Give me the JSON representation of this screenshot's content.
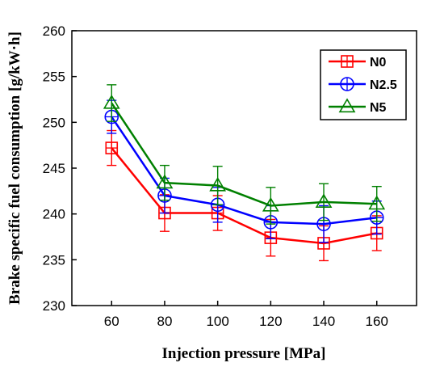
{
  "chart_data": {
    "type": "line",
    "xlabel": "Injection pressure [MPa]",
    "ylabel": "Brake specific fuel consumption [g/kW·h]",
    "x": [
      60,
      80,
      100,
      120,
      140,
      160
    ],
    "xlim": [
      45,
      175
    ],
    "ylim": [
      230,
      260
    ],
    "xticks": [
      60,
      80,
      100,
      120,
      140,
      160
    ],
    "yticks": [
      230,
      235,
      240,
      245,
      250,
      255,
      260
    ],
    "grid": false,
    "legend_position": "top-right",
    "series": [
      {
        "name": "N0",
        "color": "#ff0000",
        "marker": "square-cross",
        "values": [
          247.2,
          240.1,
          240.1,
          237.4,
          236.8,
          237.9
        ],
        "errors": [
          1.9,
          2.0,
          1.9,
          2.0,
          1.9,
          1.9
        ]
      },
      {
        "name": "N2.5",
        "color": "#0000ff",
        "marker": "circle-cross",
        "values": [
          250.6,
          242.0,
          241.0,
          239.1,
          238.9,
          239.6
        ],
        "errors": [
          1.8,
          1.9,
          1.9,
          1.8,
          2.0,
          1.8
        ]
      },
      {
        "name": "N5",
        "color": "#008000",
        "marker": "triangle",
        "values": [
          252.1,
          243.4,
          243.1,
          240.9,
          241.3,
          241.1
        ],
        "errors": [
          2.0,
          1.9,
          2.1,
          2.0,
          2.0,
          1.9
        ]
      }
    ]
  }
}
